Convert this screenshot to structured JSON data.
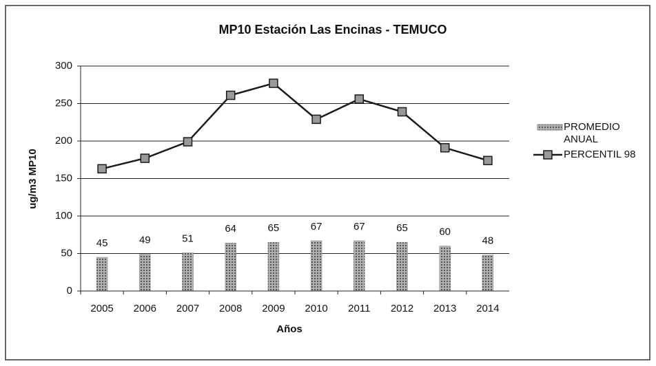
{
  "chart_data": {
    "type": "bar",
    "title": "MP10  Estación Las Encinas - TEMUCO",
    "x_label": "Años",
    "y_label": "ug/m3 MP10",
    "categories": [
      "2005",
      "2006",
      "2007",
      "2008",
      "2009",
      "2010",
      "2011",
      "2012",
      "2013",
      "2014"
    ],
    "series": [
      {
        "name": "PROMEDIO ANUAL",
        "type": "bar",
        "color": "#8c8c8c",
        "values": [
          45,
          49,
          51,
          64,
          65,
          67,
          67,
          65,
          60,
          48
        ]
      },
      {
        "name": "PERCENTIL 98",
        "type": "line",
        "color": "#1a1a1a",
        "values": [
          163,
          177,
          199,
          261,
          277,
          229,
          256,
          239,
          191,
          174
        ]
      }
    ],
    "ylim": [
      0,
      300
    ],
    "yticks": [
      0,
      50,
      100,
      150,
      200,
      250,
      300
    ],
    "grid": true,
    "legend": "right"
  }
}
